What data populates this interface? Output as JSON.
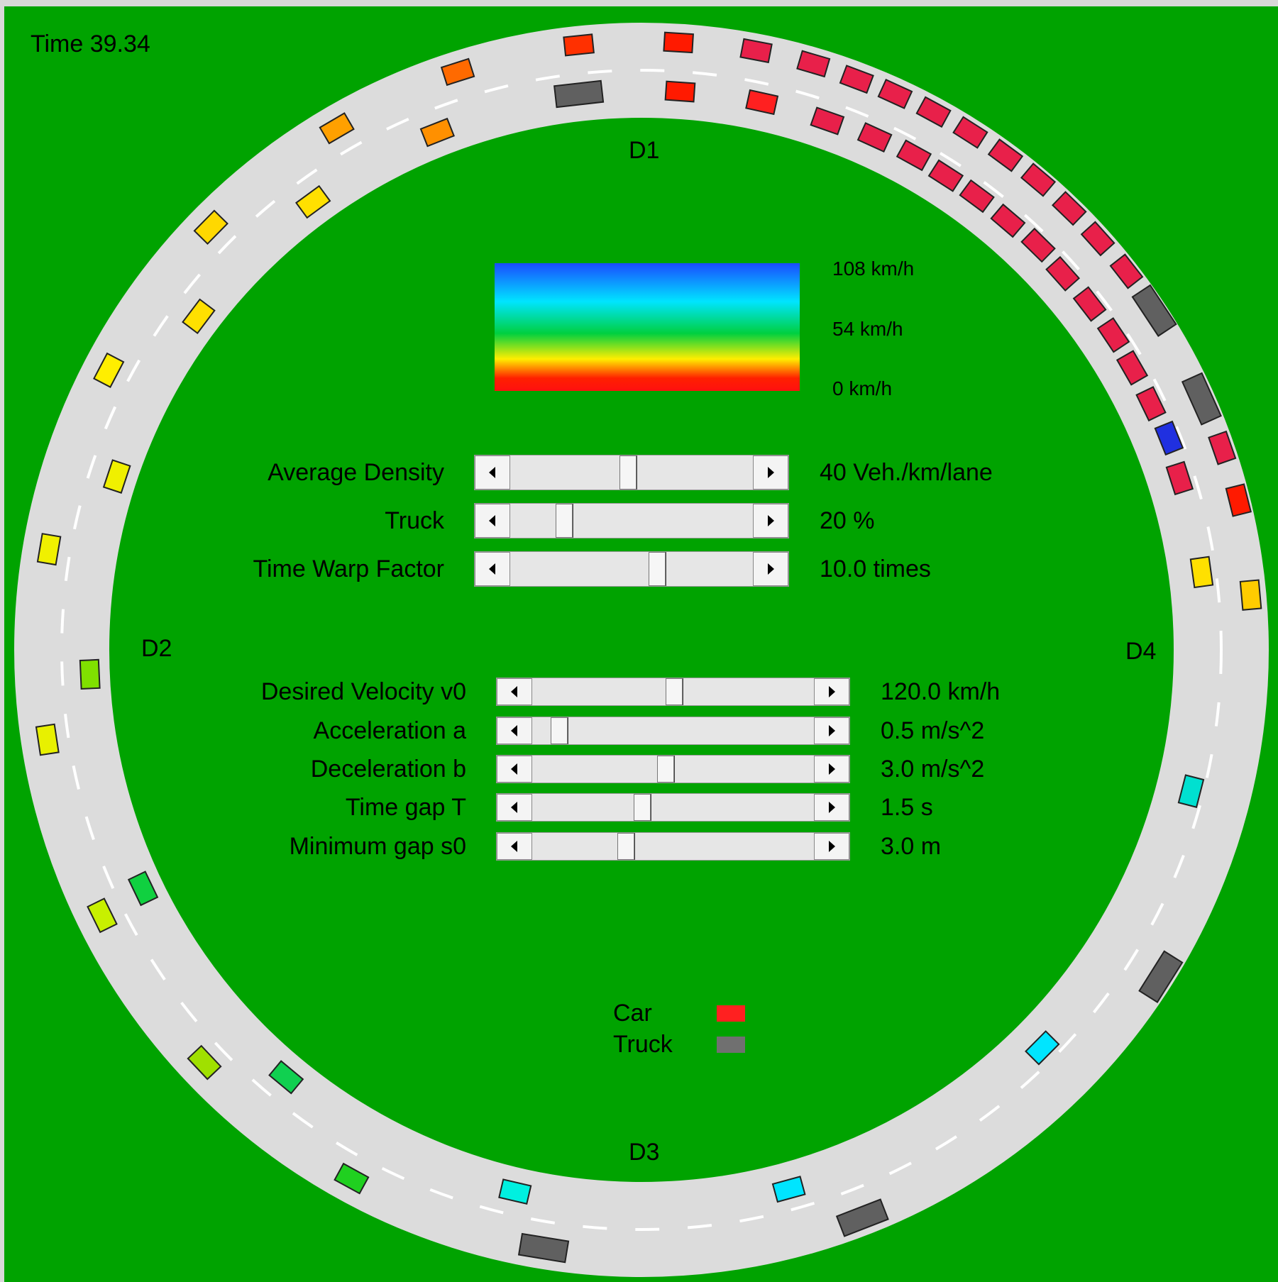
{
  "time": "Time  39.34",
  "detectors": [
    "D1",
    "D2",
    "D3",
    "D4"
  ],
  "speed_scale": [
    "108 km/h",
    "54 km/h",
    "0 km/h"
  ],
  "sliders": [
    {
      "label": "Average Density",
      "value": "40 Veh./km/lane"
    },
    {
      "label": "Truck",
      "value": "20 %"
    },
    {
      "label": "Time Warp Factor",
      "value": "10.0 times"
    },
    {
      "label": "Desired Velocity v0",
      "value": "120.0 km/h"
    },
    {
      "label": "Acceleration a",
      "value": "0.5 m/s^2"
    },
    {
      "label": "Deceleration b",
      "value": "3.0 m/s^2"
    },
    {
      "label": "Time gap T",
      "value": "1.5 s"
    },
    {
      "label": "Minimum gap s0",
      "value": "3.0 m"
    }
  ],
  "legend": [
    "Car",
    "Truck"
  ]
}
